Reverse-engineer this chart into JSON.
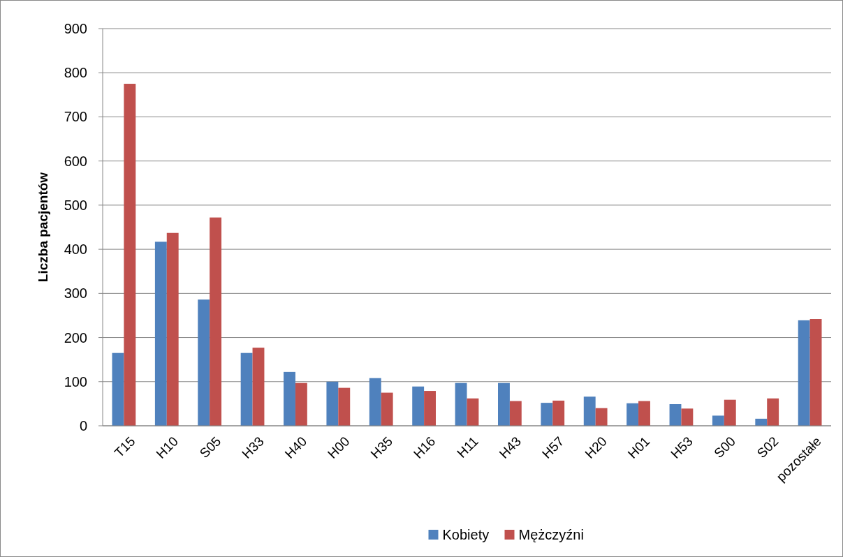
{
  "chart_data": {
    "type": "bar",
    "ylabel": "Liczba pacjentów",
    "categories": [
      "T15",
      "H10",
      "S05",
      "H33",
      "H40",
      "H00",
      "H35",
      "H16",
      "H11",
      "H43",
      "H57",
      "H20",
      "H01",
      "H53",
      "S00",
      "S02",
      "pozostałe"
    ],
    "series": [
      {
        "name": "Kobiety",
        "color": "#4f81bd",
        "values": [
          165,
          417,
          286,
          165,
          122,
          100,
          108,
          89,
          97,
          97,
          52,
          66,
          51,
          49,
          23,
          16,
          239
        ]
      },
      {
        "name": "Mężczyźni",
        "color": "#c0504d",
        "values": [
          775,
          437,
          472,
          177,
          97,
          86,
          75,
          79,
          62,
          56,
          57,
          40,
          56,
          39,
          59,
          62,
          242
        ]
      }
    ],
    "ylim": [
      0,
      900
    ],
    "yticks": [
      0,
      100,
      200,
      300,
      400,
      500,
      600,
      700,
      800,
      900
    ],
    "grid": "y",
    "legend": "bottom"
  }
}
